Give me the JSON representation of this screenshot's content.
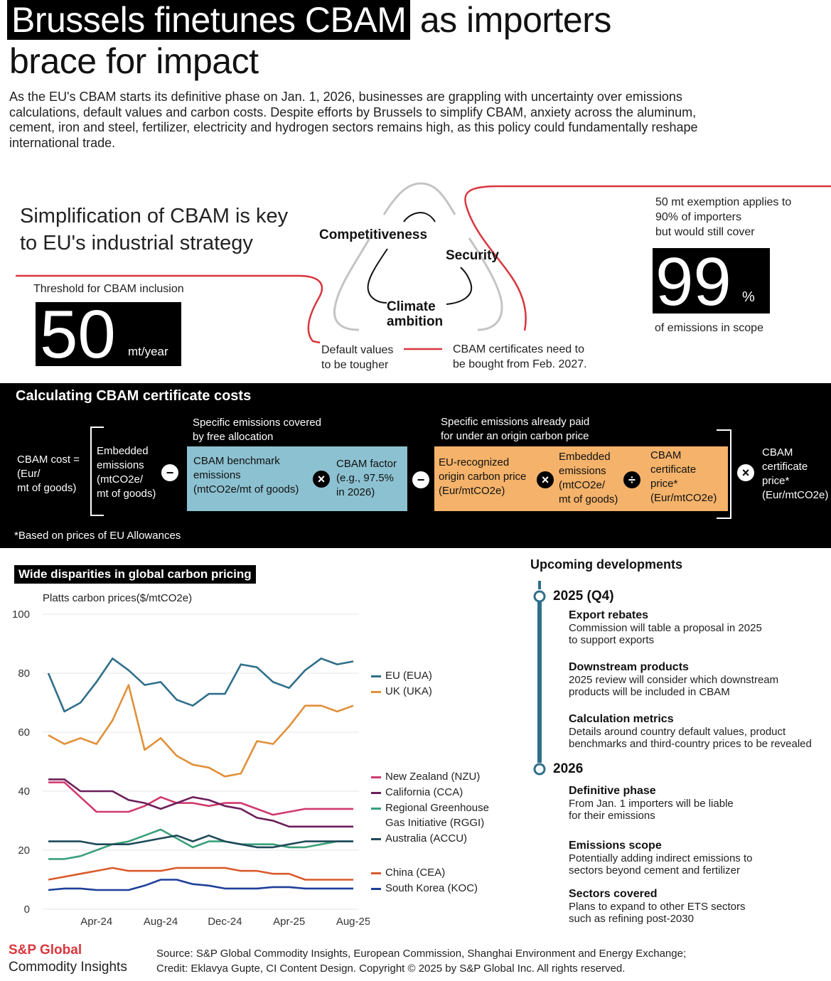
{
  "title": {
    "line1_highlight": "Brussels finetunes CBAM",
    "line1_rest": "as importers",
    "line2": "brace for impact"
  },
  "intro": "As the EU's CBAM starts its definitive phase on Jan. 1, 2026, businesses are grappling with uncertainty over emissions calculations, default values and carbon costs. Despite efforts by Brussels to simplify CBAM, anxiety across the aluminum, cement, iron and steel, fertilizer, electricity and hydrogen sectors remains high, as this policy could fundamentally reshape international trade.",
  "strategy": {
    "heading_line1": "Simplification of CBAM is key",
    "heading_line2": "to EU's industrial strategy",
    "threshold_label": "Threshold for CBAM inclusion",
    "threshold_value": "50",
    "threshold_unit": "mt/year",
    "triangle": {
      "competitiveness": "Competitiveness",
      "security": "Security",
      "climate1": "Climate",
      "climate2": "ambition"
    },
    "default_values1": "Default values",
    "default_values2": "to be tougher",
    "certificates1": "CBAM certificates need to",
    "certificates2": "be bought from Feb. 2027.",
    "exemption1": "50 mt exemption applies to",
    "exemption2": "90% of importers",
    "exemption3": "but would still cover",
    "scope_value": "99",
    "scope_unit": "%",
    "scope_label": "of emissions in scope",
    "accent_color": "#d9363e"
  },
  "calc": {
    "title": "Calculating CBAM certificate costs",
    "cost_label1": "CBAM cost =",
    "cost_label2": "(Eur/",
    "cost_label3": "mt of goods)",
    "embedded1": "Embedded",
    "embedded2": "emissions",
    "embedded3": "(mtCO2e/",
    "embedded4": "mt of goods)",
    "free_alloc1": "Specific emissions covered",
    "free_alloc2": "by free allocation",
    "benchmark1": "CBAM benchmark",
    "benchmark2": "emissions",
    "benchmark3": "(mtCO2e/mt of goods)",
    "factor1": "CBAM factor",
    "factor2": "(e.g., 97.5%",
    "factor3": "in 2026)",
    "origin_paid1": "Specific emissions already paid",
    "origin_paid2": "for under an origin carbon price",
    "origin1": "EU-recognized",
    "origin2": "origin carbon price",
    "origin3": "(Eur/mtCO2e)",
    "emb2_1": "Embedded",
    "emb2_2": "emissions",
    "emb2_3": "(mtCO2e/",
    "emb2_4": "mt of goods)",
    "cert1": "CBAM",
    "cert2": "certificate",
    "cert3": "price*",
    "cert4": "(Eur/mtCO2e)",
    "final1": "CBAM",
    "final2": "certificate",
    "final3": "price*",
    "final4": "(Eur/mtCO2e)",
    "footnote": "*Based on prices of EU Allowances",
    "op_minus": "−",
    "op_times": "×",
    "op_divide": "÷",
    "blue_color": "#8cc1d1",
    "orange_color": "#f4b26a"
  },
  "chart_heading": "Wide disparities in global carbon pricing",
  "chart_data": {
    "type": "line",
    "title": "Wide disparities in global carbon pricing",
    "ylabel": "Platts carbon prices($/mtCO2e)",
    "ylim": [
      0,
      100
    ],
    "yticks": [
      0,
      20,
      40,
      60,
      80,
      100
    ],
    "xticks": [
      "Apr-24",
      "Aug-24",
      "Dec-24",
      "Apr-25",
      "Aug-25"
    ],
    "x": [
      "Jan-24",
      "Feb-24",
      "Mar-24",
      "Apr-24",
      "May-24",
      "Jun-24",
      "Jul-24",
      "Aug-24",
      "Sep-24",
      "Oct-24",
      "Nov-24",
      "Dec-24",
      "Jan-25",
      "Feb-25",
      "Mar-25",
      "Apr-25",
      "May-25",
      "Jun-25",
      "Jul-25",
      "Aug-25"
    ],
    "series": [
      {
        "name": "EU (EUA)",
        "color": "#2f6f8a",
        "values": [
          80,
          67,
          70,
          77,
          85,
          81,
          76,
          77,
          71,
          69,
          73,
          73,
          83,
          82,
          77,
          75,
          81,
          85,
          83,
          84
        ]
      },
      {
        "name": "UK (UKA)",
        "color": "#e0903a",
        "values": [
          59,
          56,
          58,
          56,
          64,
          76,
          54,
          58,
          52,
          49,
          48,
          45,
          46,
          57,
          56,
          62,
          69,
          69,
          67,
          69
        ]
      },
      {
        "name": "New Zealand (NZU)",
        "color": "#d03a6c",
        "values": [
          43,
          43,
          38,
          33,
          33,
          33,
          35,
          38,
          36,
          36,
          35,
          36,
          36,
          34,
          32,
          33,
          34,
          34,
          34,
          34
        ]
      },
      {
        "name": "California (CCA)",
        "color": "#6b1e5a",
        "values": [
          44,
          44,
          40,
          40,
          40,
          37,
          36,
          34,
          36,
          38,
          37,
          35,
          34,
          31,
          30,
          28,
          28,
          28,
          28,
          28
        ]
      },
      {
        "name": "Regional Greenhouse Gas Initiative (RGGI)",
        "color": "#3aa07a",
        "values": [
          17,
          17,
          18,
          20,
          22,
          23,
          25,
          27,
          24,
          21,
          23,
          23,
          22,
          22,
          22,
          21,
          21,
          22,
          23,
          23
        ]
      },
      {
        "name": "Australia (ACCU)",
        "color": "#1f4a5a",
        "values": [
          23,
          23,
          23,
          22,
          22,
          22,
          23,
          24,
          25,
          23,
          25,
          23,
          22,
          21,
          21,
          22,
          23,
          23,
          23,
          23
        ]
      },
      {
        "name": "China (CEA)",
        "color": "#d95a2b",
        "values": [
          10,
          11,
          12,
          13,
          14,
          13,
          13,
          13,
          14,
          14,
          14,
          14,
          13,
          13,
          12,
          12,
          10,
          10,
          10,
          10
        ]
      },
      {
        "name": "South Korea (KOC)",
        "color": "#1f3f9a",
        "values": [
          6.5,
          7,
          7,
          6.5,
          6.5,
          6.5,
          8,
          10,
          10,
          8.5,
          8,
          7,
          7,
          7,
          7.5,
          7.5,
          7,
          7,
          7,
          7
        ]
      }
    ],
    "legend_labels": [
      "EU (EUA)",
      "UK (UKA)",
      "New Zealand (NZU)",
      "California (CCA)",
      "Regional Greenhouse",
      "Gas Initiative (RGGI)",
      "Australia (ACCU)",
      "China (CEA)",
      "South Korea (KOC)"
    ],
    "grid": true,
    "legend": "right"
  },
  "timeline": {
    "heading": "Upcoming developments",
    "color": "#2f6f8a",
    "y2025": "2025 (Q4)",
    "y2026": "2026",
    "items2025": [
      {
        "title": "Export rebates",
        "line1": "Commission will table a proposal in 2025",
        "line2": "to support exports"
      },
      {
        "title": "Downstream products",
        "line1": "2025 review will consider which downstream",
        "line2": "products will be included in CBAM"
      },
      {
        "title": "Calculation metrics",
        "line1": "Details around country default values, product",
        "line2": "benchmarks and third-country prices to be revealed"
      }
    ],
    "items2026": [
      {
        "title": "Definitive phase",
        "line1": "From Jan. 1 importers will be liable",
        "line2": "for their emissions"
      },
      {
        "title": "Emissions scope",
        "line1": "Potentially adding indirect emissions to",
        "line2": "sectors beyond cement and fertilizer"
      },
      {
        "title": "Sectors covered",
        "line1": "Plans to expand to other ETS sectors",
        "line2": "such as refining post-2030"
      }
    ]
  },
  "footer": {
    "brand1": "S&P Global",
    "brand2": "Commodity Insights",
    "source": "Source: S&P Global Commodity Insights, European Commission, Shanghai Environment and Energy Exchange;",
    "credit": "Credit: Eklavya Gupte, CI Content Design.  Copyright © 2025 by S&P Global Inc.  All rights reserved."
  }
}
